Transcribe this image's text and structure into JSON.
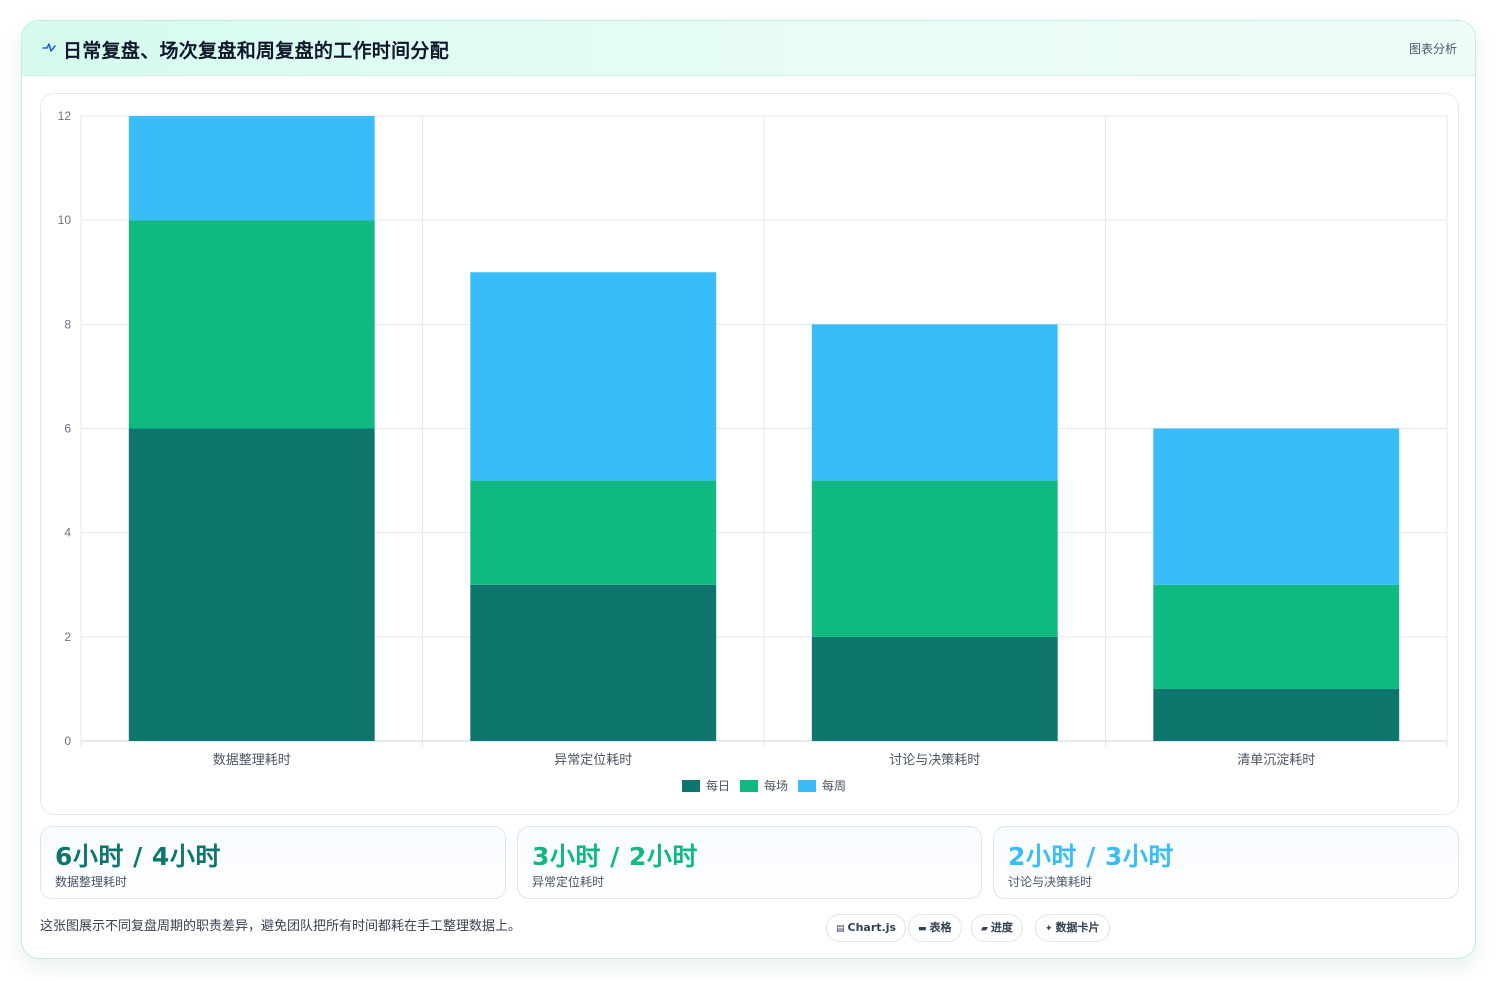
{
  "header": {
    "title": "日常复盘、场次复盘和周复盘的工作时间分配",
    "tag": "图表分析",
    "icon": "pulse-icon"
  },
  "chart_data": {
    "type": "bar",
    "stacked": true,
    "categories": [
      "数据整理耗时",
      "异常定位耗时",
      "讨论与决策耗时",
      "清单沉淀耗时"
    ],
    "series": [
      {
        "name": "每日",
        "values": [
          6,
          3,
          2,
          1
        ],
        "color": "#0f766e"
      },
      {
        "name": "每场",
        "values": [
          4,
          2,
          3,
          2
        ],
        "color": "#10b981"
      },
      {
        "name": "每周",
        "values": [
          2,
          4,
          3,
          3
        ],
        "color": "#38bdf8"
      }
    ],
    "ylim": [
      0,
      12
    ],
    "yticks": [
      0,
      2,
      4,
      6,
      8,
      10,
      12
    ],
    "grid": true,
    "legend": "bottom-center"
  },
  "stats": [
    {
      "value": "6小时 / 4小时",
      "label": "数据整理耗时",
      "color": "#0f766e"
    },
    {
      "value": "3小时 / 2小时",
      "label": "异常定位耗时",
      "color": "#10b981"
    },
    {
      "value": "2小时 / 3小时",
      "label": "讨论与决策耗时",
      "color": "#38bdf8"
    }
  ],
  "footer": {
    "note": "这张图展示不同复盘周期的职责差异，避免团队把所有时间都耗在手工整理数据上。",
    "pills": [
      {
        "icon": "chart-icon",
        "label": "Chart.js",
        "glyph": "▤"
      },
      {
        "icon": "table-icon",
        "label": "表格",
        "glyph": "▬"
      },
      {
        "icon": "progress-icon",
        "label": "进度",
        "glyph": "▰"
      },
      {
        "icon": "sparkle-icon",
        "label": "数据卡片",
        "glyph": "✦"
      }
    ]
  }
}
